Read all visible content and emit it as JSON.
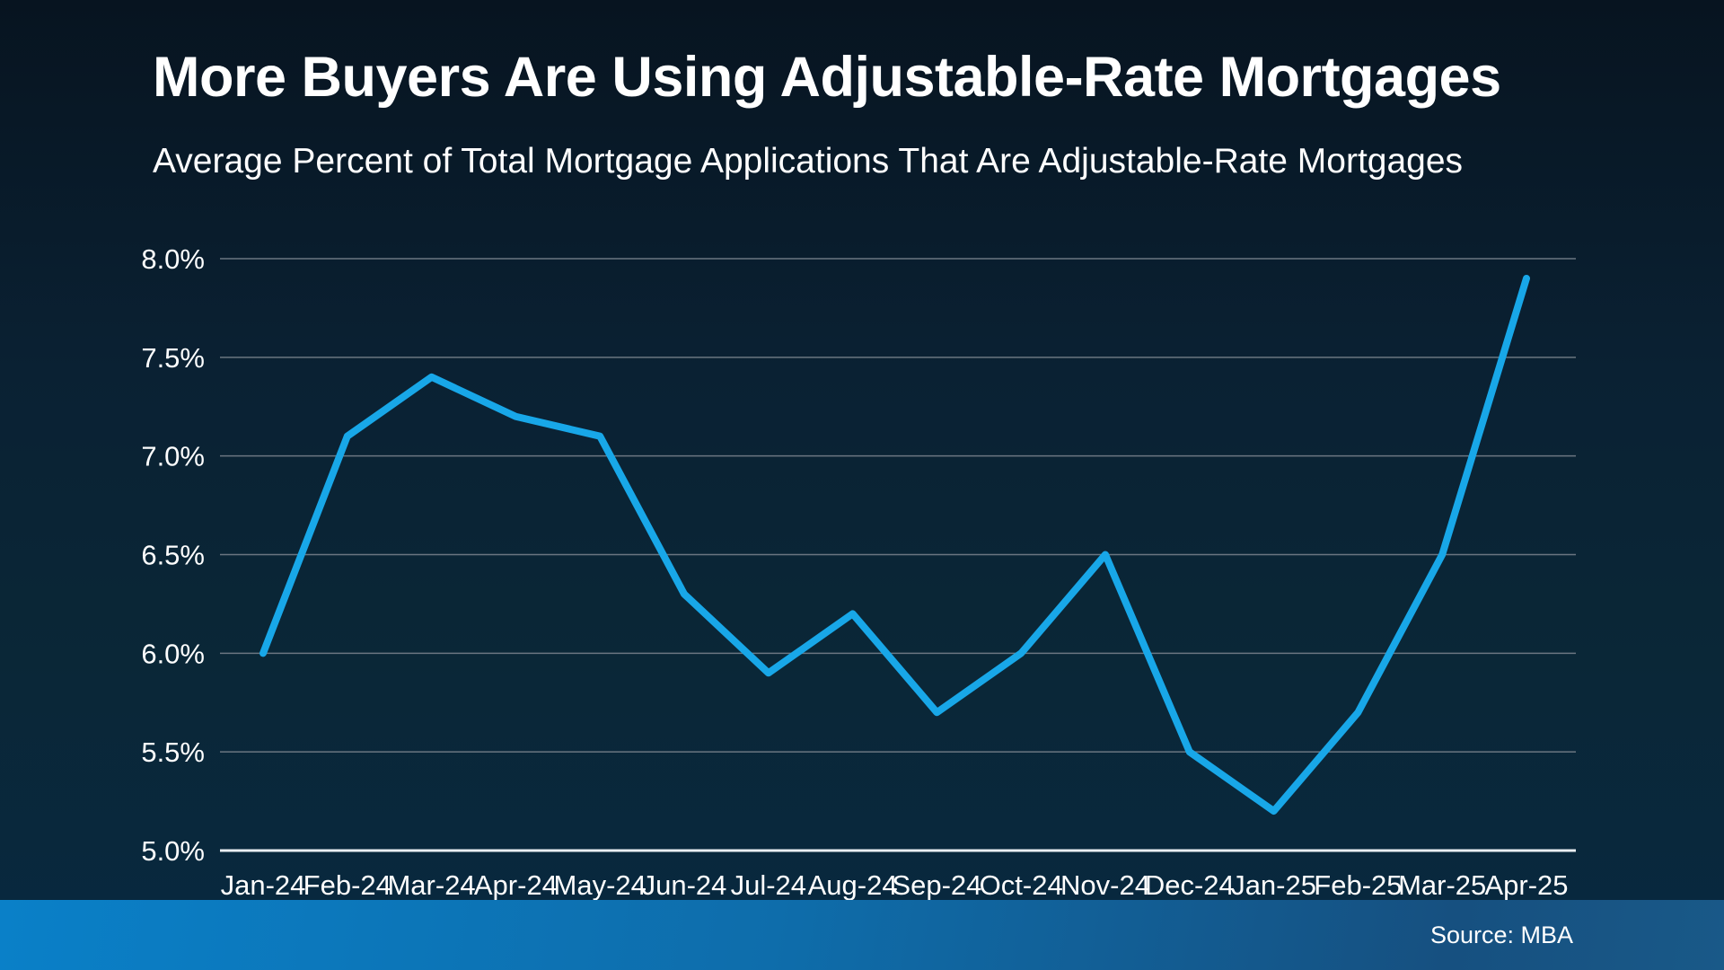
{
  "header": {
    "title": "More Buyers Are Using Adjustable-Rate Mortgages",
    "subtitle": "Average Percent of Total Mortgage Applications That Are Adjustable-Rate Mortgages"
  },
  "footer": {
    "source_label": "Source: MBA"
  },
  "colors": {
    "line": "#18a7e8",
    "gridline": "#6b7681",
    "axis_line": "#e9eef2",
    "text": "#ffffff",
    "background_top": "#071420",
    "background_bottom": "#082840",
    "footer_bar_left": "#0a80c8",
    "footer_bar_right": "#195988"
  },
  "chart_data": {
    "type": "line",
    "title": "More Buyers Are Using Adjustable-Rate Mortgages",
    "subtitle": "Average Percent of Total Mortgage Applications That Are Adjustable-Rate Mortgages",
    "categories": [
      "Jan-24",
      "Feb-24",
      "Mar-24",
      "Apr-24",
      "May-24",
      "Jun-24",
      "Jul-24",
      "Aug-24",
      "Sep-24",
      "Oct-24",
      "Nov-24",
      "Dec-24",
      "Jan-25",
      "Feb-25",
      "Mar-25",
      "Apr-25"
    ],
    "values": [
      6.0,
      7.1,
      7.4,
      7.2,
      7.1,
      6.3,
      5.9,
      6.2,
      5.7,
      6.0,
      6.5,
      5.5,
      5.2,
      5.7,
      6.5,
      7.9
    ],
    "xlabel": "",
    "ylabel": "",
    "ylim": [
      5.0,
      8.0
    ],
    "ytick_step": 0.5,
    "ytick_format": "0.0%",
    "grid": true,
    "legend": false,
    "source": "Source: MBA"
  }
}
